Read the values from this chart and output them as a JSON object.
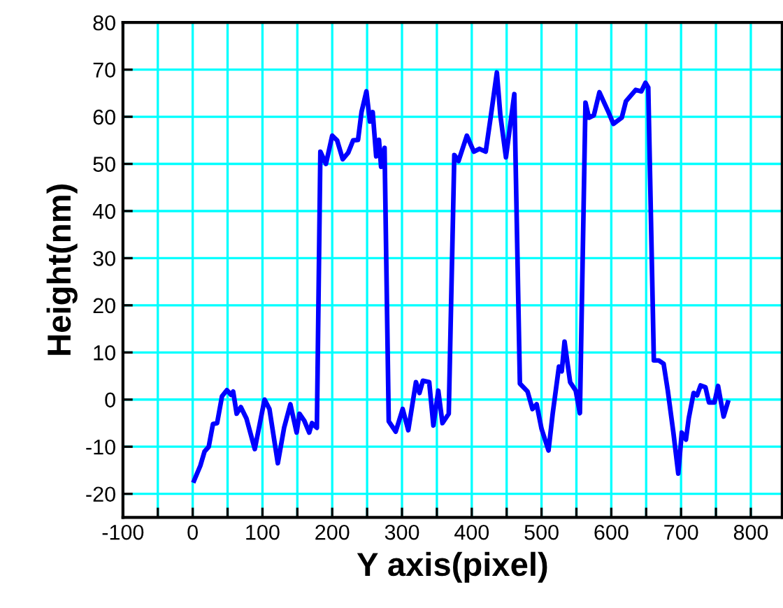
{
  "chart_data": {
    "type": "line",
    "xlabel": "Y axis(pixel)",
    "ylabel": "Height(nm)",
    "xlim": [
      -100,
      845
    ],
    "ylim": [
      -25,
      80
    ],
    "xticks": [
      -100,
      {
        "value": -50,
        "label": null
      },
      0,
      {
        "value": 50,
        "label": null
      },
      100,
      {
        "value": 150,
        "label": null
      },
      200,
      {
        "value": 250,
        "label": null
      },
      300,
      {
        "value": 350,
        "label": null
      },
      400,
      {
        "value": 450,
        "label": null
      },
      500,
      {
        "value": 550,
        "label": null
      },
      600,
      {
        "value": 650,
        "label": null
      },
      700,
      {
        "value": 750,
        "label": null
      },
      800
    ],
    "yticks": [
      -20,
      -10,
      0,
      10,
      20,
      30,
      40,
      50,
      60,
      70,
      80
    ],
    "grid": true,
    "marker": "none",
    "line_style": "solid",
    "series": [
      {
        "color": "#0000ff",
        "x": [
          2,
          11,
          17,
          23,
          29,
          35,
          42,
          49,
          55,
          58,
          63,
          69,
          77,
          89,
          95,
          103,
          110,
          122,
          131,
          140,
          149,
          153,
          160,
          167,
          171,
          178,
          183,
          191,
          200,
          207,
          215,
          223,
          230,
          237,
          242,
          249,
          254,
          258,
          263,
          267,
          270,
          275,
          281,
          291,
          301,
          309,
          320,
          325,
          330,
          339,
          345,
          352,
          358,
          367,
          375,
          381,
          393,
          403,
          411,
          420,
          427,
          436,
          441,
          449,
          461,
          469,
          480,
          487,
          493,
          500,
          510,
          516,
          525,
          529,
          533,
          541,
          549,
          555,
          563,
          568,
          575,
          583,
          595,
          603,
          615,
          621,
          635,
          643,
          649,
          653,
          661,
          668,
          675,
          681,
          689,
          696,
          701,
          707,
          711,
          718,
          723,
          728,
          735,
          740,
          748,
          753,
          761,
          767
        ],
        "values": [
          -17.2,
          -14,
          -11,
          -10,
          -5.2,
          -5,
          0.7,
          2,
          1,
          1.7,
          -3,
          -1.6,
          -4,
          -10.5,
          -6,
          0,
          -2,
          -13.5,
          -6,
          -1,
          -7,
          -3,
          -4.5,
          -7,
          -5,
          -6,
          52.6,
          50,
          56,
          55,
          51,
          52.4,
          55,
          55.1,
          61,
          65.4,
          59,
          61,
          51.6,
          55.1,
          49.4,
          53.4,
          -4.6,
          -6.8,
          -2,
          -6.5,
          3.7,
          1.4,
          4,
          3.7,
          -5.5,
          1.9,
          -5,
          -3,
          51.9,
          50.6,
          56,
          52.6,
          53.2,
          52.6,
          59.8,
          69.4,
          60.3,
          51.4,
          64.8,
          3.4,
          1.7,
          -2,
          -1,
          -6.2,
          -10.8,
          -3,
          7,
          6,
          12.3,
          3.7,
          1.9,
          -2.9,
          63,
          59.8,
          60.3,
          65.2,
          61.3,
          58.5,
          59.8,
          63.3,
          65.7,
          65.4,
          67.2,
          66.2,
          8.3,
          8.3,
          7.6,
          1.9,
          -7,
          -15.7,
          -7,
          -8.5,
          -4,
          1.4,
          0.9,
          3,
          2.6,
          -0.6,
          -0.6,
          2.9,
          -3.6,
          -0.6
        ]
      }
    ]
  }
}
